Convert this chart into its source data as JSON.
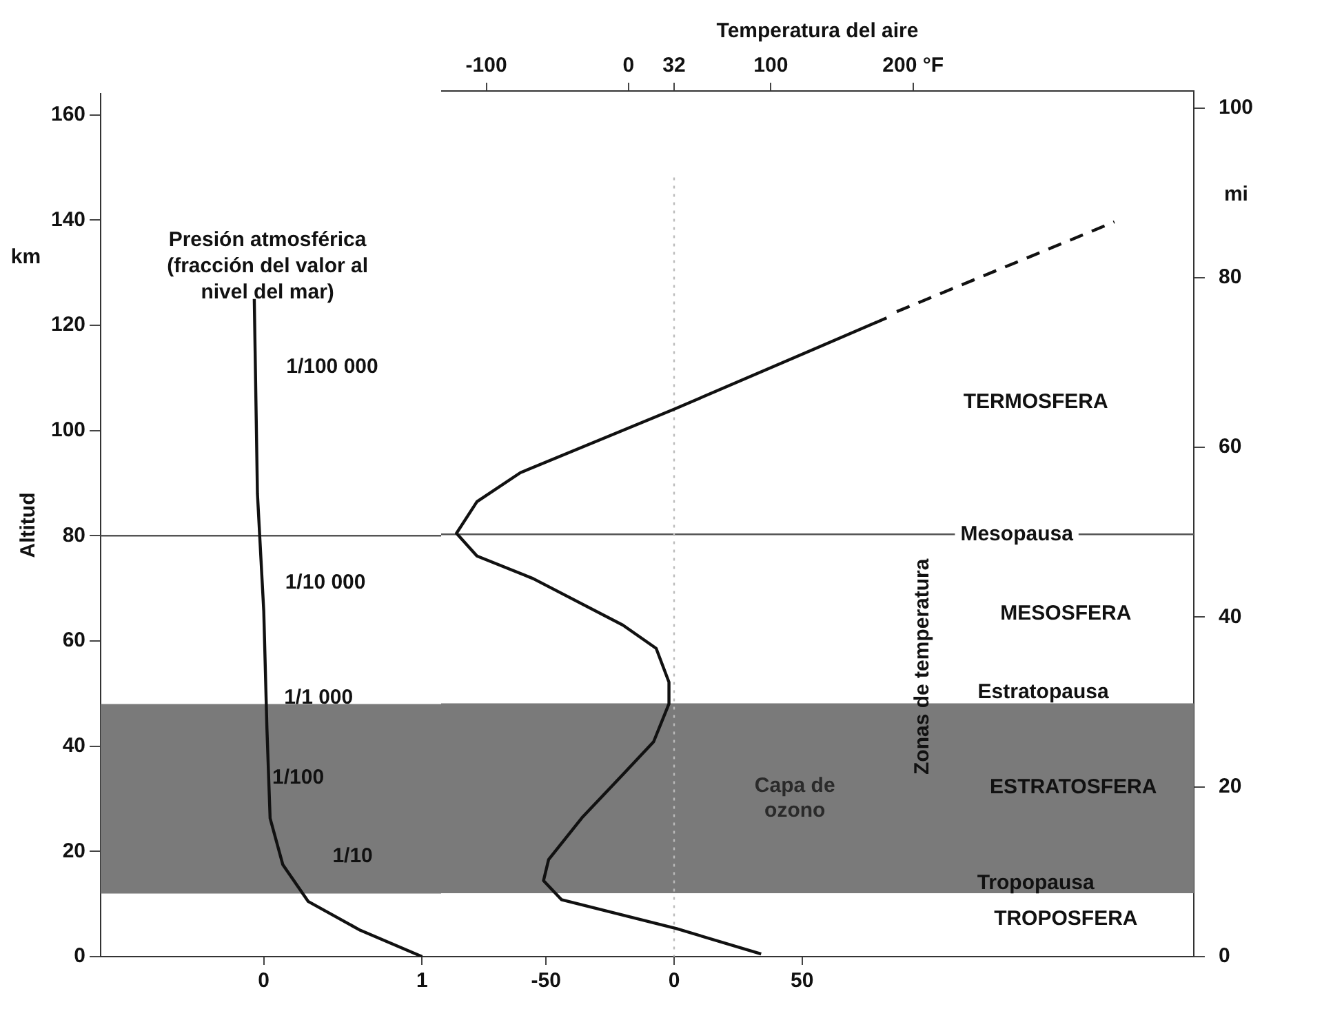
{
  "chart_data": [
    {
      "type": "line",
      "title": "Presión atmosférica (fracción del valor al nivel del mar)",
      "ylabel": "Altitud",
      "xlim": [
        -1.03,
        1.12
      ],
      "xticks": [
        0,
        1
      ],
      "ylim": [
        0,
        164
      ],
      "yticks": [
        0,
        20,
        40,
        60,
        80,
        100,
        120,
        140,
        160
      ],
      "series": [
        {
          "color": "#111111",
          "x": [
            1,
            0.61,
            0.28,
            0.12,
            0.04,
            0.02,
            0,
            -0.04,
            -0.06
          ],
          "values": [
            0,
            5,
            10.5,
            17.5,
            26.3,
            43.3,
            65.6,
            88,
            125
          ]
        }
      ],
      "bands": [
        {
          "axis": "y",
          "from": 12,
          "to": 48,
          "color": "#7a7a7a"
        }
      ],
      "ref_lines": [
        {
          "axis": "y",
          "value": 80,
          "color": "#555555"
        }
      ],
      "annotations": [
        "km",
        "1/100 000",
        "1/10 000",
        "1/1 000",
        "1/100",
        "1/10"
      ],
      "grid": false,
      "legend": false
    },
    {
      "type": "line",
      "x2label": "Temperatura del aire",
      "y2label": "mi",
      "xlim": [
        -91,
        203
      ],
      "xticks": [
        -50,
        0,
        50
      ],
      "x2lim": [
        -131.8,
        397.4
      ],
      "x2ticks": [
        -100,
        0,
        32,
        100,
        {
          "value": 200,
          "label": "200 °F"
        }
      ],
      "ylim": [
        0,
        164
      ],
      "y2lim": [
        0,
        102
      ],
      "y2ticks": [
        0,
        20,
        40,
        60,
        80,
        100
      ],
      "series": [
        {
          "color": "#111111",
          "x": [
            34,
            1,
            -44,
            -51,
            -49,
            -36,
            -20,
            -8,
            -2,
            -2,
            -7,
            -20,
            -55,
            -77,
            -85,
            -77,
            -60,
            0,
            83
          ],
          "values": [
            0.5,
            5.3,
            10.8,
            14.4,
            18.4,
            26.3,
            34.5,
            40.7,
            47.9,
            52,
            58.4,
            62.8,
            71.6,
            75.9,
            80.2,
            86.2,
            91.7,
            103.7,
            121
          ]
        },
        {
          "color": "#111111",
          "line_style": "dashed",
          "x": [
            87,
            172
          ],
          "values": [
            122.2,
            139.2
          ]
        }
      ],
      "bands": [
        {
          "axis": "y",
          "from": 12,
          "to": 48,
          "label": "Capa de ozono",
          "color": "#7a7a7a"
        }
      ],
      "ref_lines": [
        {
          "axis": "y",
          "value": 80,
          "label": "Mesopausa",
          "color": "#555555"
        },
        {
          "axis": "x",
          "value": 0,
          "color": "#bbbbbb",
          "line_style": "dotted"
        }
      ],
      "annotations": [
        "TERMOSFERA",
        "MESOSFERA",
        "Zonas de temperatura",
        "Estratopausa",
        "ESTRATOSFERA",
        "Tropopausa",
        "TROPOSFERA"
      ],
      "grid": false,
      "legend": false
    }
  ]
}
